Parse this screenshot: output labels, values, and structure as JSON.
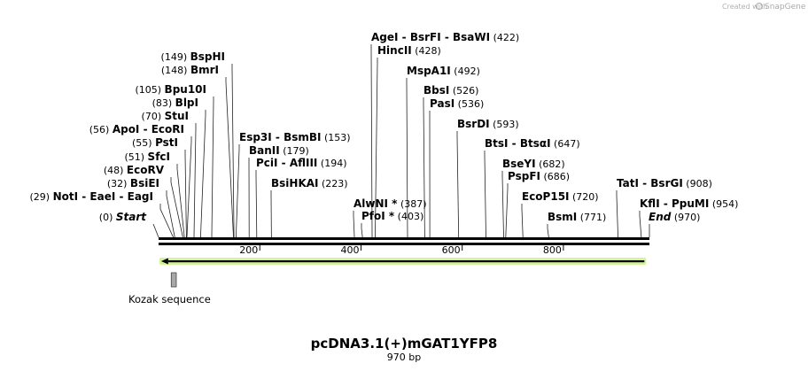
{
  "title": "pcDNA3.1(+)mGAT1YFP8",
  "length_label": "970 bp",
  "length_bp": 970,
  "credit": {
    "text": "Created with",
    "brand": "SnapGene"
  },
  "axis_ticks": [
    "200",
    "400",
    "600",
    "800"
  ],
  "tick_values": [
    200,
    400,
    600,
    800
  ],
  "feature": {
    "name": "Kozak sequence",
    "start": 25,
    "end": 35
  },
  "primer": {
    "start": 5,
    "end": 960,
    "color": "#7ed321"
  },
  "sites": [
    {
      "name": "Start",
      "pos": 0,
      "pos_label": "(0)",
      "kind": "end"
    },
    {
      "name": "NotI  - EaeI  - EagI",
      "pos": 29,
      "pos_label": "(29)"
    },
    {
      "name": "BsiEI",
      "pos": 32,
      "pos_label": "(32)"
    },
    {
      "name": "EcoRV",
      "pos": 48,
      "pos_label": "(48)"
    },
    {
      "name": "SfcI",
      "pos": 51,
      "pos_label": "(51)"
    },
    {
      "name": "PstI",
      "pos": 55,
      "pos_label": "(55)"
    },
    {
      "name": "ApoI  - EcoRI",
      "pos": 56,
      "pos_label": "(56)"
    },
    {
      "name": "StuI",
      "pos": 70,
      "pos_label": "(70)"
    },
    {
      "name": "BlpI",
      "pos": 83,
      "pos_label": "(83)"
    },
    {
      "name": "Bpu10I",
      "pos": 105,
      "pos_label": "(105)"
    },
    {
      "name": "BmrI",
      "pos": 148,
      "pos_label": "(148)"
    },
    {
      "name": "BspHI",
      "pos": 149,
      "pos_label": "(149)"
    },
    {
      "name": "Esp3I  - BsmBI",
      "pos": 153,
      "pos_label": "(153)"
    },
    {
      "name": "BanII",
      "pos": 179,
      "pos_label": "(179)"
    },
    {
      "name": "PciI  - AflIII",
      "pos": 194,
      "pos_label": "(194)"
    },
    {
      "name": "BsiHKAI",
      "pos": 223,
      "pos_label": "(223)"
    },
    {
      "name": "AlwNI *",
      "pos": 387,
      "pos_label": "(387)"
    },
    {
      "name": "PfoI *",
      "pos": 403,
      "pos_label": "(403)"
    },
    {
      "name": "AgeI  - BsrFI  - BsaWI",
      "pos": 422,
      "pos_label": "(422)"
    },
    {
      "name": "HincII",
      "pos": 428,
      "pos_label": "(428)"
    },
    {
      "name": "MspA1I",
      "pos": 492,
      "pos_label": "(492)"
    },
    {
      "name": "BbsI",
      "pos": 526,
      "pos_label": "(526)"
    },
    {
      "name": "PasI",
      "pos": 536,
      "pos_label": "(536)"
    },
    {
      "name": "BsrDI",
      "pos": 593,
      "pos_label": "(593)"
    },
    {
      "name": "BtsI  - BtsαI",
      "pos": 647,
      "pos_label": "(647)"
    },
    {
      "name": "BseYI",
      "pos": 682,
      "pos_label": "(682)"
    },
    {
      "name": "PspFI",
      "pos": 686,
      "pos_label": "(686)"
    },
    {
      "name": "EcoP15I",
      "pos": 720,
      "pos_label": "(720)"
    },
    {
      "name": "BsmI",
      "pos": 771,
      "pos_label": "(771)"
    },
    {
      "name": "TatI  - BsrGI",
      "pos": 908,
      "pos_label": "(908)"
    },
    {
      "name": "KflI  - PpuMI",
      "pos": 954,
      "pos_label": "(954)"
    },
    {
      "name": "End",
      "pos": 970,
      "pos_label": "(970)",
      "kind": "end"
    }
  ]
}
